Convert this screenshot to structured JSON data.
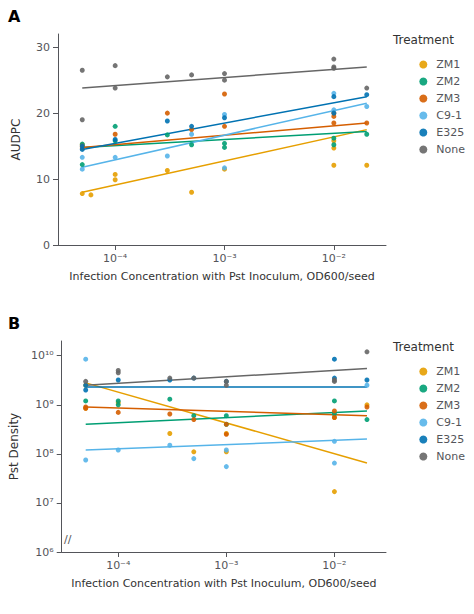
{
  "chart_data": [
    {
      "type": "scatter",
      "panel_label": "A",
      "xlabel": "Infection Concentration with Pst Inoculum, OD600/seed",
      "ylabel": "AUDPC",
      "log": "x",
      "xlim": [
        3e-05,
        0.03
      ],
      "xticks": [
        {
          "value": 0.0001,
          "label": "10⁻⁴"
        },
        {
          "value": 0.001,
          "label": "10⁻³"
        },
        {
          "value": 0.01,
          "label": "10⁻²"
        }
      ],
      "ylim": [
        0,
        32
      ],
      "yticks": [
        0,
        10,
        20,
        30
      ],
      "grid": false,
      "legend": "right",
      "legend_title": "Treatment",
      "series": [
        {
          "name": "ZM1",
          "color": "#E69F00",
          "type": "scatter",
          "values": [
            [
              5e-05,
              7.8
            ],
            [
              6e-05,
              7.6
            ],
            [
              5e-05,
              15.2
            ],
            [
              0.0001,
              9.9
            ],
            [
              0.0001,
              10.7
            ],
            [
              0.0003,
              11.3
            ],
            [
              0.0005,
              8.0
            ],
            [
              0.001,
              11.5
            ],
            [
              0.01,
              14.7
            ],
            [
              0.01,
              15.8
            ],
            [
              0.01,
              12.1
            ],
            [
              0.02,
              12.1
            ]
          ]
        },
        {
          "name": "ZM2",
          "color": "#009E73",
          "type": "scatter",
          "values": [
            [
              5e-05,
              12.2
            ],
            [
              5e-05,
              15.3
            ],
            [
              0.0001,
              18.0
            ],
            [
              0.0001,
              15.8
            ],
            [
              0.0003,
              16.7
            ],
            [
              0.0005,
              15.2
            ],
            [
              0.001,
              15.4
            ],
            [
              0.001,
              14.8
            ],
            [
              0.01,
              15.2
            ],
            [
              0.01,
              16.2
            ],
            [
              0.02,
              16.8
            ]
          ]
        },
        {
          "name": "ZM3",
          "color": "#D55E00",
          "type": "scatter",
          "values": [
            [
              5e-05,
              15.0
            ],
            [
              5e-05,
              14.7
            ],
            [
              0.0001,
              16.8
            ],
            [
              0.0003,
              20.0
            ],
            [
              0.0005,
              17.5
            ],
            [
              0.001,
              18.0
            ],
            [
              0.001,
              22.9
            ],
            [
              0.01,
              20.0
            ],
            [
              0.01,
              19.5
            ],
            [
              0.01,
              18.5
            ],
            [
              0.02,
              18.5
            ]
          ]
        },
        {
          "name": "C9-1",
          "color": "#56B4E9",
          "type": "scatter",
          "values": [
            [
              5e-05,
              11.5
            ],
            [
              5e-05,
              13.3
            ],
            [
              0.0001,
              13.3
            ],
            [
              0.0003,
              13.5
            ],
            [
              0.0005,
              16.8
            ],
            [
              0.001,
              19.8
            ],
            [
              0.001,
              11.7
            ],
            [
              0.01,
              23.0
            ],
            [
              0.01,
              20.5
            ],
            [
              0.02,
              21.0
            ]
          ]
        },
        {
          "name": "E325",
          "color": "#0072B2",
          "type": "scatter",
          "values": [
            [
              5e-05,
              14.5
            ],
            [
              5e-05,
              15.0
            ],
            [
              0.0001,
              16.0
            ],
            [
              0.0003,
              18.8
            ],
            [
              0.0005,
              18.0
            ],
            [
              0.001,
              19.3
            ],
            [
              0.01,
              20.0
            ],
            [
              0.01,
              22.5
            ],
            [
              0.02,
              22.8
            ]
          ]
        },
        {
          "name": "None",
          "color": "#666666",
          "type": "scatter",
          "values": [
            [
              5e-05,
              19.0
            ],
            [
              5e-05,
              26.5
            ],
            [
              0.0001,
              27.2
            ],
            [
              0.0001,
              23.8
            ],
            [
              0.0003,
              25.5
            ],
            [
              0.0005,
              25.8
            ],
            [
              0.001,
              26.0
            ],
            [
              0.001,
              25.0
            ],
            [
              0.01,
              27.0
            ],
            [
              0.01,
              26.8
            ],
            [
              0.01,
              28.2
            ],
            [
              0.02,
              23.8
            ]
          ]
        },
        {
          "name": "ZM1",
          "color": "#E69F00",
          "type": "line",
          "values": [
            [
              5e-05,
              8.0
            ],
            [
              0.02,
              17.5
            ]
          ]
        },
        {
          "name": "ZM2",
          "color": "#009E73",
          "type": "line",
          "values": [
            [
              5e-05,
              14.8
            ],
            [
              0.02,
              17.2
            ]
          ]
        },
        {
          "name": "ZM3",
          "color": "#D55E00",
          "type": "line",
          "values": [
            [
              5e-05,
              14.8
            ],
            [
              0.02,
              18.5
            ]
          ]
        },
        {
          "name": "C9-1",
          "color": "#56B4E9",
          "type": "line",
          "values": [
            [
              5e-05,
              11.8
            ],
            [
              0.02,
              21.5
            ]
          ]
        },
        {
          "name": "E325",
          "color": "#0072B2",
          "type": "line",
          "values": [
            [
              5e-05,
              14.5
            ],
            [
              0.02,
              22.5
            ]
          ]
        },
        {
          "name": "None",
          "color": "#666666",
          "type": "line",
          "values": [
            [
              5e-05,
              23.8
            ],
            [
              0.02,
              27.0
            ]
          ]
        }
      ]
    },
    {
      "type": "scatter",
      "panel_label": "B",
      "xlabel": "Infection Concentration with Pst Inoculum, OD600/seed",
      "ylabel": "Pst Density",
      "log": true,
      "xlim": [
        3e-05,
        0.03
      ],
      "xticks": [
        {
          "value": 0.0001,
          "label": "10⁻⁴"
        },
        {
          "value": 0.001,
          "label": "10⁻³"
        },
        {
          "value": 0.01,
          "label": "10⁻²"
        }
      ],
      "ylim": [
        1000000,
        19952623149.688797
      ],
      "yticks": [
        {
          "value": 1000000,
          "label": "10⁶"
        },
        {
          "value": 10000000,
          "label": "10⁷"
        },
        {
          "value": 100000000,
          "label": "10⁸"
        },
        {
          "value": 1000000000,
          "label": "10⁹"
        },
        {
          "value": 10000000000,
          "label": "10¹⁰"
        }
      ],
      "grid": false,
      "legend": "right",
      "legend_title": "Treatment",
      "annotations": [
        "//"
      ],
      "series": [
        {
          "name": "ZM1",
          "color": "#E69F00",
          "type": "scatter",
          "values": [
            [
              5e-05,
              2500000000.0
            ],
            [
              5e-05,
              850000000.0
            ],
            [
              0.0001,
              1100000000.0
            ],
            [
              0.0003,
              260000000.0
            ],
            [
              0.0005,
              110000000.0
            ],
            [
              0.001,
              260000000.0
            ],
            [
              0.001,
              110000000.0
            ],
            [
              0.01,
              550000000.0
            ],
            [
              0.01,
              17000000.0
            ],
            [
              0.02,
              1000000000.0
            ]
          ]
        },
        {
          "name": "ZM2",
          "color": "#009E73",
          "type": "scatter",
          "values": [
            [
              5e-05,
              1200000000.0
            ],
            [
              0.0001,
              1200000000.0
            ],
            [
              0.0001,
              1000000000.0
            ],
            [
              0.0003,
              1300000000.0
            ],
            [
              0.0005,
              600000000.0
            ],
            [
              0.001,
              600000000.0
            ],
            [
              0.001,
              400000000.0
            ],
            [
              0.01,
              650000000.0
            ],
            [
              0.01,
              1200000000.0
            ],
            [
              0.02,
              500000000.0
            ]
          ]
        },
        {
          "name": "ZM3",
          "color": "#D55E00",
          "type": "scatter",
          "values": [
            [
              5e-05,
              900000000.0
            ],
            [
              5e-05,
              850000000.0
            ],
            [
              0.0001,
              700000000.0
            ],
            [
              0.0003,
              650000000.0
            ],
            [
              0.0005,
              500000000.0
            ],
            [
              0.001,
              400000000.0
            ],
            [
              0.001,
              250000000.0
            ],
            [
              0.01,
              750000000.0
            ],
            [
              0.01,
              550000000.0
            ],
            [
              0.02,
              900000000.0
            ]
          ]
        },
        {
          "name": "C9-1",
          "color": "#56B4E9",
          "type": "scatter",
          "values": [
            [
              5e-05,
              8500000000.0
            ],
            [
              5e-05,
              75000000.0
            ],
            [
              0.0001,
              120000000.0
            ],
            [
              0.0003,
              150000000.0
            ],
            [
              0.0005,
              80000000.0
            ],
            [
              0.001,
              55000000.0
            ],
            [
              0.001,
              120000000.0
            ],
            [
              0.01,
              65000000.0
            ],
            [
              0.01,
              180000000.0
            ],
            [
              0.02,
              2500000000.0
            ]
          ]
        },
        {
          "name": "E325",
          "color": "#0072B2",
          "type": "scatter",
          "values": [
            [
              5e-05,
              2500000000.0
            ],
            [
              5e-05,
              2000000000.0
            ],
            [
              0.0001,
              3200000000.0
            ],
            [
              0.0003,
              3200000000.0
            ],
            [
              0.0005,
              3500000000.0
            ],
            [
              0.001,
              3000000000.0
            ],
            [
              0.01,
              3500000000.0
            ],
            [
              0.01,
              8500000000.0
            ],
            [
              0.02,
              3200000000.0
            ]
          ]
        },
        {
          "name": "None",
          "color": "#666666",
          "type": "scatter",
          "values": [
            [
              5e-05,
              3000000000.0
            ],
            [
              0.0001,
              4500000000.0
            ],
            [
              0.0001,
              5000000000.0
            ],
            [
              0.0003,
              3500000000.0
            ],
            [
              0.0005,
              3500000000.0
            ],
            [
              0.001,
              3000000000.0
            ],
            [
              0.001,
              2500000000.0
            ],
            [
              0.01,
              3200000000.0
            ],
            [
              0.01,
              3000000000.0
            ],
            [
              0.02,
              12000000000.0
            ]
          ]
        },
        {
          "name": "ZM1",
          "color": "#E69F00",
          "type": "line",
          "values": [
            [
              5e-05,
              2800000000.0
            ],
            [
              0.02,
              65000000.0
            ]
          ]
        },
        {
          "name": "ZM2",
          "color": "#009E73",
          "type": "line",
          "values": [
            [
              5e-05,
              400000000.0
            ],
            [
              0.02,
              750000000.0
            ]
          ]
        },
        {
          "name": "ZM3",
          "color": "#D55E00",
          "type": "line",
          "values": [
            [
              5e-05,
              900000000.0
            ],
            [
              0.02,
              600000000.0
            ]
          ]
        },
        {
          "name": "C9-1",
          "color": "#56B4E9",
          "type": "line",
          "values": [
            [
              5e-05,
              120000000.0
            ],
            [
              0.02,
              200000000.0
            ]
          ]
        },
        {
          "name": "E325",
          "color": "#0072B2",
          "type": "line",
          "values": [
            [
              5e-05,
              2300000000.0
            ],
            [
              0.02,
              2300000000.0
            ]
          ]
        },
        {
          "name": "None",
          "color": "#666666",
          "type": "line",
          "values": [
            [
              5e-05,
              2500000000.0
            ],
            [
              0.02,
              5500000000.0
            ]
          ]
        }
      ]
    }
  ]
}
